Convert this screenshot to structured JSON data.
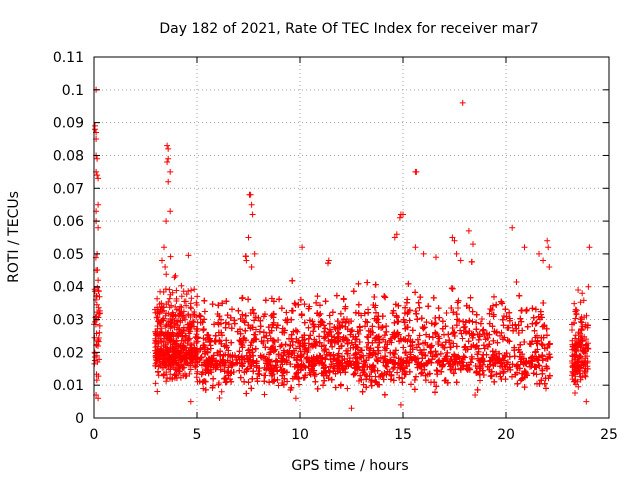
{
  "chart_data": {
    "type": "scatter",
    "title": "Day 182 of 2021, Rate Of TEC Index for receiver mar7",
    "xlabel": "GPS time / hours",
    "ylabel": "ROTI / TECUs",
    "xlim": [
      0,
      25
    ],
    "ylim": [
      0,
      0.11
    ],
    "xticks": [
      0,
      5,
      10,
      15,
      20,
      25
    ],
    "xtick_labels": [
      "0",
      "5",
      "10",
      "15",
      "20",
      "25"
    ],
    "yticks": [
      0,
      0.01,
      0.02,
      0.03,
      0.04,
      0.05,
      0.06,
      0.07,
      0.08,
      0.09,
      0.1,
      0.11
    ],
    "ytick_labels": [
      "0",
      "0.01",
      "0.02",
      "0.03",
      "0.04",
      "0.05",
      "0.06",
      "0.07",
      "0.08",
      "0.09",
      "0.1",
      "0.11"
    ],
    "grid": true,
    "marker": "+",
    "color": "#ff0000",
    "series": [
      {
        "name": "ROTI",
        "segments": [
          {
            "start": 0.0,
            "end": 0.3,
            "density": 160,
            "base": 0.021,
            "spread": 0.012
          },
          {
            "start": 2.95,
            "end": 5.05,
            "density": 260,
            "base": 0.021,
            "spread": 0.008
          },
          {
            "start": 5.1,
            "end": 22.15,
            "density": 270,
            "base": 0.019,
            "spread": 0.008
          },
          {
            "start": 23.2,
            "end": 24.0,
            "density": 220,
            "base": 0.018,
            "spread": 0.007
          }
        ],
        "highlights": [
          [
            0.1,
            0.1
          ],
          [
            0.05,
            0.089
          ],
          [
            0.05,
            0.088
          ],
          [
            0.1,
            0.087
          ],
          [
            0.1,
            0.085
          ],
          [
            0.1,
            0.08
          ],
          [
            0.15,
            0.079
          ],
          [
            0.1,
            0.075
          ],
          [
            0.15,
            0.074
          ],
          [
            0.2,
            0.073
          ],
          [
            0.2,
            0.065
          ],
          [
            0.1,
            0.063
          ],
          [
            0.1,
            0.06
          ],
          [
            0.2,
            0.058
          ],
          [
            0.15,
            0.05
          ],
          [
            0.1,
            0.045
          ],
          [
            0.2,
            0.042
          ],
          [
            0.1,
            0.007
          ],
          [
            0.2,
            0.006
          ],
          [
            3.55,
            0.083
          ],
          [
            3.6,
            0.082
          ],
          [
            3.6,
            0.079
          ],
          [
            3.55,
            0.078
          ],
          [
            3.7,
            0.075
          ],
          [
            3.6,
            0.072
          ],
          [
            3.7,
            0.063
          ],
          [
            3.5,
            0.06
          ],
          [
            3.4,
            0.052
          ],
          [
            3.3,
            0.048
          ],
          [
            3.45,
            0.046
          ],
          [
            7.55,
            0.068
          ],
          [
            7.6,
            0.068
          ],
          [
            7.65,
            0.065
          ],
          [
            7.7,
            0.062
          ],
          [
            7.5,
            0.055
          ],
          [
            7.4,
            0.048
          ],
          [
            7.65,
            0.046
          ],
          [
            7.8,
            0.05
          ],
          [
            15.0,
            0.062
          ],
          [
            14.9,
            0.062
          ],
          [
            14.85,
            0.061
          ],
          [
            14.7,
            0.056
          ],
          [
            14.6,
            0.055
          ],
          [
            15.6,
            0.075
          ],
          [
            15.65,
            0.075
          ],
          [
            15.6,
            0.052
          ],
          [
            16.0,
            0.05
          ],
          [
            16.6,
            0.049
          ],
          [
            17.4,
            0.055
          ],
          [
            17.5,
            0.054
          ],
          [
            17.6,
            0.05
          ],
          [
            17.8,
            0.048
          ],
          [
            17.9,
            0.096
          ],
          [
            18.2,
            0.057
          ],
          [
            18.4,
            0.053
          ],
          [
            20.3,
            0.058
          ],
          [
            20.9,
            0.052
          ],
          [
            21.6,
            0.05
          ],
          [
            21.8,
            0.048
          ],
          [
            22.0,
            0.054
          ],
          [
            22.05,
            0.052
          ],
          [
            24.05,
            0.052
          ],
          [
            11.4,
            0.048
          ],
          [
            10.1,
            0.052
          ],
          [
            12.5,
            0.003
          ],
          [
            12.3,
            0.009
          ],
          [
            14.9,
            0.004
          ],
          [
            18.5,
            0.007
          ],
          [
            4.7,
            0.005
          ],
          [
            5.3,
            0.009
          ],
          [
            6.2,
            0.008
          ],
          [
            9.8,
            0.006
          ],
          [
            23.9,
            0.005
          ],
          [
            23.5,
            0.039
          ],
          [
            23.7,
            0.038
          ],
          [
            24.0,
            0.04
          ],
          [
            23.3,
            0.029
          ],
          [
            22.1,
            0.046
          ]
        ]
      }
    ]
  }
}
